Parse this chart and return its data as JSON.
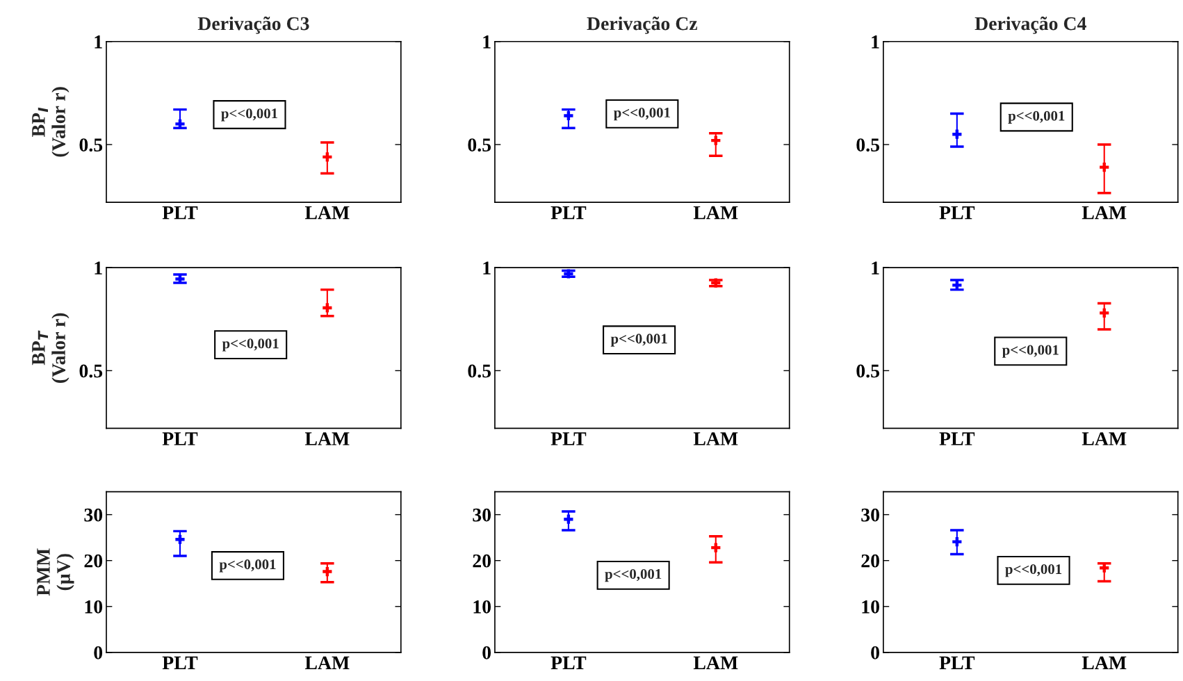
{
  "chart_data": [
    {
      "type": "scatter",
      "title": "Derivação C3",
      "ylabel": "BP$_{I}$\n(Valor r)",
      "categories": [
        "PLT",
        "LAM"
      ],
      "values": [
        0.6,
        0.44
      ],
      "colors": [
        "#0000ff",
        "#ff0000"
      ],
      "errors": [
        [
          0.58,
          0.67
        ],
        [
          0.36,
          0.51
        ]
      ],
      "marker": "cross",
      "ylim": [
        0.22,
        1
      ],
      "yticks": [
        0.5,
        1
      ],
      "annotations": [
        "p<<0,001"
      ],
      "grid": false
    },
    {
      "type": "scatter",
      "title": "Derivação Cz",
      "categories": [
        "PLT",
        "LAM"
      ],
      "values": [
        0.64,
        0.52
      ],
      "colors": [
        "#0000ff",
        "#ff0000"
      ],
      "errors": [
        [
          0.58,
          0.67
        ],
        [
          0.445,
          0.555
        ]
      ],
      "marker": "cross",
      "ylim": [
        0.22,
        1
      ],
      "yticks": [
        0.5,
        1
      ],
      "annotations": [
        "p<<0,001"
      ],
      "grid": false
    },
    {
      "type": "scatter",
      "title": "Derivação C4",
      "categories": [
        "PLT",
        "LAM"
      ],
      "values": [
        0.55,
        0.39
      ],
      "colors": [
        "#0000ff",
        "#ff0000"
      ],
      "errors": [
        [
          0.49,
          0.65
        ],
        [
          0.265,
          0.5
        ]
      ],
      "marker": "cross",
      "ylim": [
        0.22,
        1
      ],
      "yticks": [
        0.5,
        1
      ],
      "annotations": [
        "p<<0,001"
      ],
      "grid": false
    },
    {
      "type": "scatter",
      "ylabel": "BP$_{T}$\n(Valor r)",
      "categories": [
        "PLT",
        "LAM"
      ],
      "values": [
        0.945,
        0.805
      ],
      "colors": [
        "#0000ff",
        "#ff0000"
      ],
      "errors": [
        [
          0.926,
          0.967
        ],
        [
          0.765,
          0.893
        ]
      ],
      "marker": "cross",
      "ylim": [
        0.22,
        1
      ],
      "yticks": [
        0.5,
        1
      ],
      "annotations": [
        "p<<0,001"
      ],
      "grid": false
    },
    {
      "type": "scatter",
      "categories": [
        "PLT",
        "LAM"
      ],
      "values": [
        0.97,
        0.926
      ],
      "colors": [
        "#0000ff",
        "#ff0000"
      ],
      "errors": [
        [
          0.956,
          0.985
        ],
        [
          0.91,
          0.94
        ]
      ],
      "marker": "cross",
      "ylim": [
        0.22,
        1
      ],
      "yticks": [
        0.5,
        1
      ],
      "annotations": [
        "p<<0,001"
      ],
      "grid": false
    },
    {
      "type": "scatter",
      "categories": [
        "PLT",
        "LAM"
      ],
      "values": [
        0.915,
        0.78
      ],
      "colors": [
        "#0000ff",
        "#ff0000"
      ],
      "errors": [
        [
          0.893,
          0.94
        ],
        [
          0.7,
          0.827
        ]
      ],
      "marker": "cross",
      "ylim": [
        0.22,
        1
      ],
      "yticks": [
        0.5,
        1
      ],
      "annotations": [
        "p<<0,001"
      ],
      "grid": false
    },
    {
      "type": "scatter",
      "ylabel": "PMM\n(µV)",
      "categories": [
        "PLT",
        "LAM"
      ],
      "values": [
        24.6,
        17.6
      ],
      "colors": [
        "#0000ff",
        "#ff0000"
      ],
      "errors": [
        [
          21,
          26.4
        ],
        [
          15.3,
          19.4
        ]
      ],
      "marker": "cross",
      "ylim": [
        0,
        35
      ],
      "yticks": [
        0,
        10,
        20,
        30
      ],
      "annotations": [
        "p<<0,001"
      ],
      "grid": false
    },
    {
      "type": "scatter",
      "categories": [
        "PLT",
        "LAM"
      ],
      "values": [
        29,
        22.8
      ],
      "colors": [
        "#0000ff",
        "#ff0000"
      ],
      "errors": [
        [
          26.6,
          30.7
        ],
        [
          19.6,
          25.3
        ]
      ],
      "marker": "cross",
      "ylim": [
        0,
        35
      ],
      "yticks": [
        0,
        10,
        20,
        30
      ],
      "annotations": [
        "p<<0,001"
      ],
      "grid": false
    },
    {
      "type": "scatter",
      "categories": [
        "PLT",
        "LAM"
      ],
      "values": [
        24.1,
        18.4
      ],
      "colors": [
        "#0000ff",
        "#ff0000"
      ],
      "errors": [
        [
          21.4,
          26.6
        ],
        [
          15.5,
          19.4
        ]
      ],
      "marker": "cross",
      "ylim": [
        0,
        35
      ],
      "yticks": [
        0,
        10,
        20,
        30
      ],
      "annotations": [
        "p<<0,001"
      ],
      "grid": false
    }
  ]
}
